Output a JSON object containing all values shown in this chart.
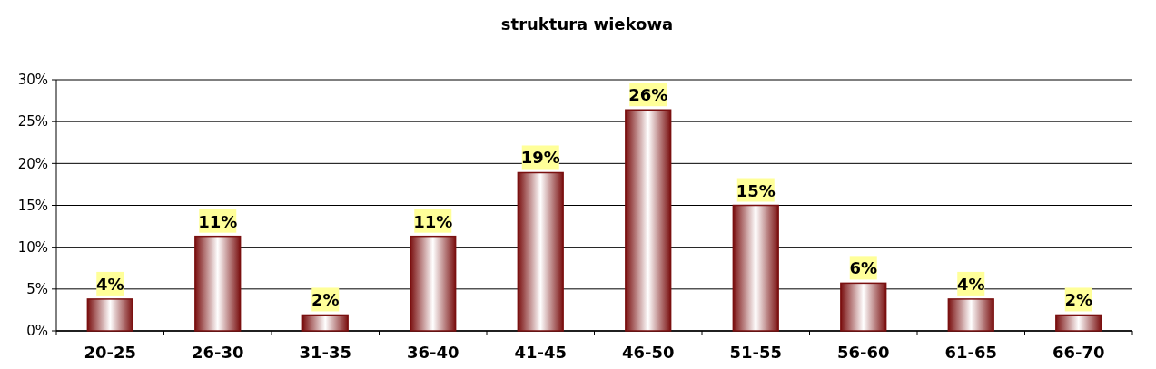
{
  "chart_data": {
    "type": "bar",
    "title": "struktura wiekowa",
    "categories": [
      "20-25",
      "26-30",
      "31-35",
      "36-40",
      "41-45",
      "46-50",
      "51-55",
      "56-60",
      "61-65",
      "66-70"
    ],
    "values": [
      3.8,
      11.3,
      1.9,
      11.3,
      18.9,
      26.4,
      15.0,
      5.7,
      3.8,
      1.9
    ],
    "value_labels": [
      "4%",
      "11%",
      "2%",
      "11%",
      "19%",
      "26%",
      "15%",
      "6%",
      "4%",
      "2%"
    ],
    "color": "#7a1010",
    "ylim": [
      0,
      30
    ],
    "yticks": [
      {
        "value": 0,
        "label": "0%"
      },
      {
        "value": 5,
        "label": "5%"
      },
      {
        "value": 10,
        "label": "10%"
      },
      {
        "value": 15,
        "label": "15%"
      },
      {
        "value": 20,
        "label": "20%"
      },
      {
        "value": 25,
        "label": "25%"
      },
      {
        "value": 30,
        "label": "30%"
      }
    ],
    "grid": "y"
  }
}
